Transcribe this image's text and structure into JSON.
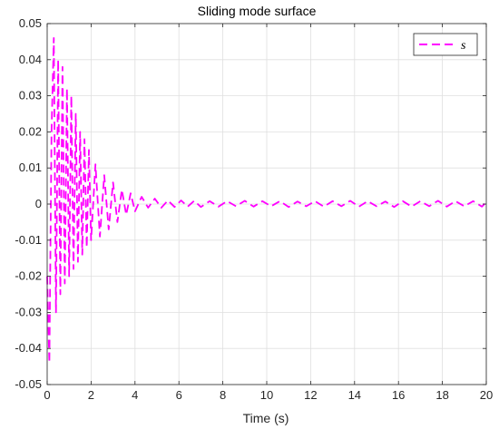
{
  "chart_data": {
    "type": "line",
    "title": "Sliding mode surface",
    "xlabel": "Time (s)",
    "ylabel": "",
    "xlim": [
      0,
      20
    ],
    "ylim": [
      -0.05,
      0.05
    ],
    "xticks": [
      0,
      2,
      4,
      6,
      8,
      10,
      12,
      14,
      16,
      18,
      20
    ],
    "yticks": [
      -0.05,
      -0.04,
      -0.03,
      -0.02,
      -0.01,
      0,
      0.01,
      0.02,
      0.03,
      0.04,
      0.05
    ],
    "xtick_labels": [
      "0",
      "2",
      "4",
      "6",
      "8",
      "10",
      "12",
      "14",
      "16",
      "18",
      "20"
    ],
    "ytick_labels": [
      "-0.05",
      "-0.04",
      "-0.03",
      "-0.02",
      "-0.01",
      "0",
      "0.01",
      "0.02",
      "0.03",
      "0.04",
      "0.05"
    ],
    "grid": true,
    "legend_position": "top-right",
    "series": [
      {
        "name": "s",
        "color": "#ff00ff",
        "style": "dashed",
        "x": [
          0,
          0.1,
          0.2,
          0.3,
          0.4,
          0.5,
          0.6,
          0.7,
          0.8,
          0.9,
          1.0,
          1.1,
          1.2,
          1.3,
          1.4,
          1.5,
          1.6,
          1.7,
          1.8,
          1.9,
          2.0,
          2.2,
          2.4,
          2.6,
          2.8,
          3.0,
          3.2,
          3.4,
          3.6,
          3.8,
          4.0,
          4.3,
          4.6,
          4.9,
          5.2,
          5.5,
          5.8,
          6.1,
          6.4,
          6.7,
          7.0,
          7.4,
          7.8,
          8.2,
          8.6,
          9.0,
          9.4,
          9.8,
          10.2,
          10.6,
          11.0,
          11.4,
          11.8,
          12.2,
          12.6,
          13.0,
          13.4,
          13.8,
          14.2,
          14.6,
          15.0,
          15.4,
          15.8,
          16.2,
          16.6,
          17.0,
          17.4,
          17.8,
          18.2,
          18.6,
          19.0,
          19.4,
          19.8,
          20.0
        ],
        "y": [
          -0.02,
          -0.044,
          0.02,
          0.046,
          -0.03,
          0.04,
          -0.025,
          0.038,
          -0.022,
          0.032,
          -0.02,
          0.03,
          -0.018,
          0.025,
          -0.016,
          0.02,
          -0.014,
          0.018,
          -0.012,
          0.015,
          -0.01,
          0.011,
          -0.009,
          0.008,
          -0.007,
          0.006,
          -0.005,
          0.004,
          -0.003,
          0.003,
          -0.002,
          0.002,
          -0.001,
          0.0015,
          -0.001,
          0.001,
          -0.0008,
          0.001,
          -0.0007,
          0.0009,
          -0.0008,
          0.0008,
          -0.0007,
          0.0008,
          -0.0006,
          0.0009,
          -0.0007,
          0.0008,
          -0.0006,
          0.0008,
          -0.0008,
          0.0007,
          -0.0006,
          0.0008,
          -0.0007,
          0.0008,
          -0.0006,
          0.0009,
          -0.0007,
          0.0008,
          -0.0006,
          0.0007,
          -0.0008,
          0.0008,
          -0.0007,
          0.0008,
          -0.0006,
          0.0009,
          -0.0007,
          0.0008,
          -0.0006,
          0.0008,
          -0.0007,
          0.0005
        ]
      }
    ]
  }
}
